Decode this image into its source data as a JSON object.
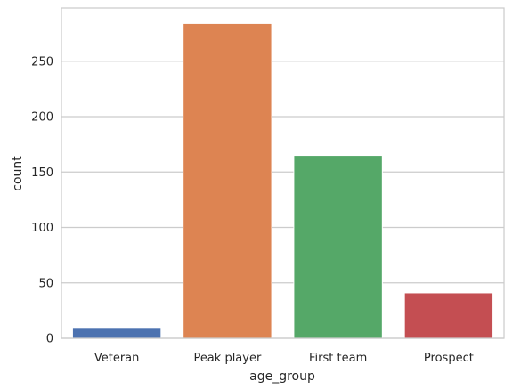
{
  "chart_data": {
    "type": "bar",
    "title": "",
    "xlabel": "age_group",
    "ylabel": "count",
    "categories": [
      "Veteran",
      "Peak player",
      "First team",
      "Prospect"
    ],
    "values": [
      9,
      284,
      165,
      41
    ],
    "colors": [
      "#4c72b0",
      "#dd8452",
      "#55a868",
      "#c44e52"
    ],
    "ylim": [
      0,
      298
    ],
    "yticks": [
      0,
      50,
      100,
      150,
      200,
      250
    ],
    "grid": "horizontal",
    "style": {
      "background": "#ffffff",
      "grid_color": "#cccccc",
      "spine_color": "#cccccc",
      "text_color": "#262626"
    }
  }
}
